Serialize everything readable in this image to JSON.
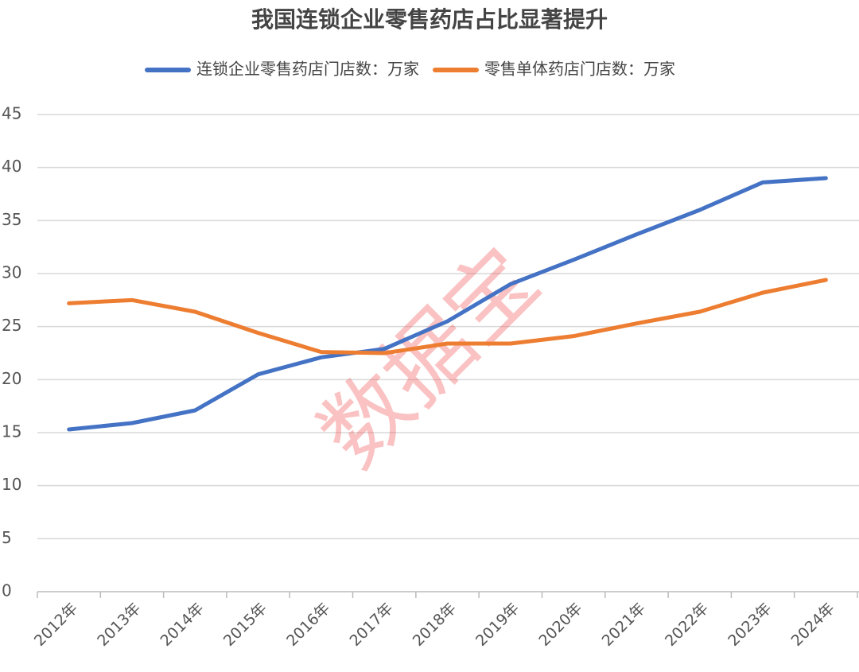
{
  "chart_data": {
    "type": "line",
    "title": "我国连锁企业零售药店占比显著提升",
    "watermark": "数据宝",
    "categories": [
      "2012年",
      "2013年",
      "2014年",
      "2015年",
      "2016年",
      "2017年",
      "2018年",
      "2019年",
      "2020年",
      "2021年",
      "2022年",
      "2023年",
      "2024年"
    ],
    "series": [
      {
        "name": "连锁企业零售药店门店数：万家",
        "color": "#4472c4",
        "values": [
          15.3,
          15.9,
          17.1,
          20.5,
          22.1,
          22.9,
          25.5,
          29.0,
          31.3,
          33.7,
          36.0,
          38.6,
          39.0
        ]
      },
      {
        "name": "零售单体药店门店数：万家",
        "color": "#ed7d31",
        "values": [
          27.2,
          27.5,
          26.4,
          24.4,
          22.6,
          22.5,
          23.4,
          23.4,
          24.1,
          25.3,
          26.4,
          28.2,
          29.4
        ]
      }
    ],
    "ylim": [
      0,
      45
    ],
    "yticks": [
      0,
      5,
      10,
      15,
      20,
      25,
      30,
      35,
      40,
      45
    ],
    "grid": true,
    "legend": "top"
  }
}
